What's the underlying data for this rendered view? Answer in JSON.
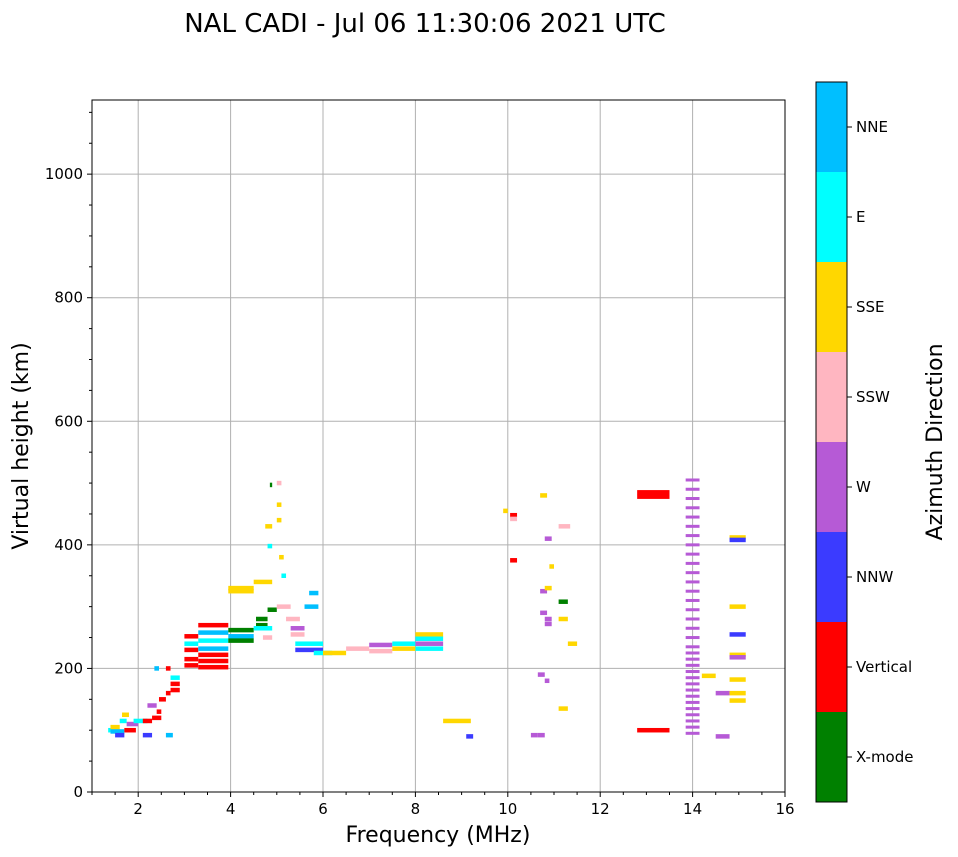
{
  "chart_data": {
    "type": "scatter",
    "title": "NAL CADI - Jul 06 11:30:06 2021 UTC",
    "xlabel": "Frequency (MHz)",
    "ylabel": "Virtual height (km)",
    "xlim": [
      1,
      16
    ],
    "ylim": [
      0,
      1120
    ],
    "xticks": [
      2,
      4,
      6,
      8,
      10,
      12,
      14,
      16
    ],
    "yticks": [
      0,
      200,
      400,
      600,
      800,
      1000
    ],
    "grid": true,
    "colorbar": {
      "title": "Azimuth Direction",
      "categories": [
        {
          "name": "X-mode",
          "color": "#008000"
        },
        {
          "name": "Vertical",
          "color": "#ff0000"
        },
        {
          "name": "NNW",
          "color": "#3b3bff"
        },
        {
          "name": "W",
          "color": "#b65ad6"
        },
        {
          "name": "SSW",
          "color": "#ffb6c1"
        },
        {
          "name": "SSE",
          "color": "#ffd700"
        },
        {
          "name": "E",
          "color": "#00ffff"
        },
        {
          "name": "NNE",
          "color": "#00bfff"
        }
      ]
    },
    "segments": [
      {
        "f1": 1.35,
        "f2": 1.4,
        "h": 100,
        "c": "E"
      },
      {
        "f1": 1.4,
        "f2": 1.6,
        "h": 105,
        "c": "SSE"
      },
      {
        "f1": 1.4,
        "f2": 1.7,
        "h": 98,
        "c": "NNE"
      },
      {
        "f1": 1.5,
        "f2": 1.7,
        "h": 92,
        "c": "NNW"
      },
      {
        "f1": 1.6,
        "f2": 1.75,
        "h": 115,
        "c": "E"
      },
      {
        "f1": 1.65,
        "f2": 1.8,
        "h": 125,
        "c": "SSE"
      },
      {
        "f1": 1.7,
        "f2": 1.95,
        "h": 100,
        "c": "Vertical"
      },
      {
        "f1": 1.75,
        "f2": 2.0,
        "h": 110,
        "c": "W"
      },
      {
        "f1": 1.9,
        "f2": 2.2,
        "h": 115,
        "c": "E"
      },
      {
        "f1": 2.1,
        "f2": 2.3,
        "h": 92,
        "c": "NNW"
      },
      {
        "f1": 2.1,
        "f2": 2.3,
        "h": 115,
        "c": "Vertical"
      },
      {
        "f1": 2.2,
        "f2": 2.4,
        "h": 140,
        "c": "W"
      },
      {
        "f1": 2.3,
        "f2": 2.5,
        "h": 120,
        "c": "Vertical"
      },
      {
        "f1": 2.4,
        "f2": 2.5,
        "h": 130,
        "c": "Vertical"
      },
      {
        "f1": 2.35,
        "f2": 2.45,
        "h": 200,
        "c": "NNE"
      },
      {
        "f1": 2.45,
        "f2": 2.6,
        "h": 150,
        "c": "Vertical"
      },
      {
        "f1": 2.6,
        "f2": 2.7,
        "h": 160,
        "c": "Vertical"
      },
      {
        "f1": 2.6,
        "f2": 2.7,
        "h": 200,
        "c": "Vertical"
      },
      {
        "f1": 2.6,
        "f2": 2.75,
        "h": 92,
        "c": "NNE"
      },
      {
        "f1": 2.7,
        "f2": 2.9,
        "h": 175,
        "c": "Vertical"
      },
      {
        "f1": 2.7,
        "f2": 2.9,
        "h": 185,
        "c": "E"
      },
      {
        "f1": 2.7,
        "f2": 2.9,
        "h": 165,
        "c": "Vertical"
      },
      {
        "f1": 3.0,
        "f2": 3.3,
        "h": 252,
        "c": "Vertical"
      },
      {
        "f1": 3.0,
        "f2": 3.3,
        "h": 240,
        "c": "E"
      },
      {
        "f1": 3.0,
        "f2": 3.3,
        "h": 230,
        "c": "Vertical"
      },
      {
        "f1": 3.0,
        "f2": 3.3,
        "h": 215,
        "c": "Vertical"
      },
      {
        "f1": 3.0,
        "f2": 3.3,
        "h": 205,
        "c": "Vertical"
      },
      {
        "f1": 3.3,
        "f2": 3.95,
        "h": 270,
        "c": "Vertical"
      },
      {
        "f1": 3.3,
        "f2": 3.95,
        "h": 258,
        "c": "NNE"
      },
      {
        "f1": 3.3,
        "f2": 3.95,
        "h": 245,
        "c": "E"
      },
      {
        "f1": 3.3,
        "f2": 3.95,
        "h": 232,
        "c": "NNE"
      },
      {
        "f1": 3.3,
        "f2": 3.95,
        "h": 222,
        "c": "Vertical"
      },
      {
        "f1": 3.3,
        "f2": 3.95,
        "h": 212,
        "c": "Vertical"
      },
      {
        "f1": 3.3,
        "f2": 3.95,
        "h": 202,
        "c": "Vertical"
      },
      {
        "f1": 3.95,
        "f2": 4.5,
        "h": 262,
        "c": "X-mode"
      },
      {
        "f1": 3.95,
        "f2": 4.5,
        "h": 252,
        "c": "NNE"
      },
      {
        "f1": 3.95,
        "f2": 4.5,
        "h": 245,
        "c": "X-mode"
      },
      {
        "f1": 3.95,
        "f2": 4.5,
        "h": 330,
        "c": "SSE"
      },
      {
        "f1": 3.95,
        "f2": 4.5,
        "h": 325,
        "c": "SSE"
      },
      {
        "f1": 4.5,
        "f2": 4.9,
        "h": 340,
        "c": "SSE"
      },
      {
        "f1": 4.55,
        "f2": 4.8,
        "h": 280,
        "c": "X-mode"
      },
      {
        "f1": 4.55,
        "f2": 4.8,
        "h": 270,
        "c": "X-mode"
      },
      {
        "f1": 4.5,
        "f2": 4.9,
        "h": 265,
        "c": "E"
      },
      {
        "f1": 4.7,
        "f2": 4.9,
        "h": 250,
        "c": "SSW"
      },
      {
        "f1": 4.8,
        "f2": 5.0,
        "h": 295,
        "c": "X-mode"
      },
      {
        "f1": 4.8,
        "f2": 4.9,
        "h": 398,
        "c": "E"
      },
      {
        "f1": 4.75,
        "f2": 4.9,
        "h": 430,
        "c": "SSE"
      },
      {
        "f1": 4.85,
        "f2": 4.9,
        "h": 497,
        "c": "X-mode"
      },
      {
        "f1": 5.0,
        "f2": 5.1,
        "h": 500,
        "c": "SSW"
      },
      {
        "f1": 5.0,
        "f2": 5.1,
        "h": 465,
        "c": "SSE"
      },
      {
        "f1": 5.0,
        "f2": 5.1,
        "h": 440,
        "c": "SSE"
      },
      {
        "f1": 5.05,
        "f2": 5.15,
        "h": 380,
        "c": "SSE"
      },
      {
        "f1": 5.1,
        "f2": 5.2,
        "h": 350,
        "c": "E"
      },
      {
        "f1": 5.0,
        "f2": 5.3,
        "h": 300,
        "c": "SSW"
      },
      {
        "f1": 5.2,
        "f2": 5.5,
        "h": 280,
        "c": "SSW"
      },
      {
        "f1": 5.3,
        "f2": 5.6,
        "h": 265,
        "c": "W"
      },
      {
        "f1": 5.3,
        "f2": 5.6,
        "h": 255,
        "c": "SSW"
      },
      {
        "f1": 5.6,
        "f2": 5.9,
        "h": 300,
        "c": "NNE"
      },
      {
        "f1": 5.7,
        "f2": 5.9,
        "h": 322,
        "c": "NNE"
      },
      {
        "f1": 5.4,
        "f2": 6.0,
        "h": 240,
        "c": "E"
      },
      {
        "f1": 5.4,
        "f2": 6.0,
        "h": 230,
        "c": "NNW"
      },
      {
        "f1": 5.8,
        "f2": 6.2,
        "h": 225,
        "c": "E"
      },
      {
        "f1": 6.0,
        "f2": 6.5,
        "h": 225,
        "c": "SSE"
      },
      {
        "f1": 6.5,
        "f2": 7.0,
        "h": 232,
        "c": "SSW"
      },
      {
        "f1": 7.0,
        "f2": 7.5,
        "h": 238,
        "c": "W"
      },
      {
        "f1": 7.0,
        "f2": 7.5,
        "h": 228,
        "c": "SSW"
      },
      {
        "f1": 7.5,
        "f2": 8.0,
        "h": 240,
        "c": "E"
      },
      {
        "f1": 7.5,
        "f2": 8.0,
        "h": 232,
        "c": "SSE"
      },
      {
        "f1": 8.0,
        "f2": 8.6,
        "h": 255,
        "c": "SSE"
      },
      {
        "f1": 8.0,
        "f2": 8.6,
        "h": 248,
        "c": "E"
      },
      {
        "f1": 8.0,
        "f2": 8.6,
        "h": 240,
        "c": "W"
      },
      {
        "f1": 8.0,
        "f2": 8.6,
        "h": 232,
        "c": "E"
      },
      {
        "f1": 8.6,
        "f2": 9.2,
        "h": 115,
        "c": "SSE"
      },
      {
        "f1": 9.1,
        "f2": 9.25,
        "h": 90,
        "c": "NNW"
      },
      {
        "f1": 9.9,
        "f2": 10.0,
        "h": 455,
        "c": "SSE"
      },
      {
        "f1": 10.05,
        "f2": 10.2,
        "h": 448,
        "c": "Vertical"
      },
      {
        "f1": 10.05,
        "f2": 10.2,
        "h": 442,
        "c": "SSW"
      },
      {
        "f1": 10.05,
        "f2": 10.2,
        "h": 375,
        "c": "Vertical"
      },
      {
        "f1": 10.5,
        "f2": 10.65,
        "h": 92,
        "c": "W"
      },
      {
        "f1": 10.65,
        "f2": 10.8,
        "h": 92,
        "c": "W"
      },
      {
        "f1": 10.65,
        "f2": 10.8,
        "h": 190,
        "c": "W"
      },
      {
        "f1": 10.8,
        "f2": 10.9,
        "h": 180,
        "c": "W"
      },
      {
        "f1": 10.7,
        "f2": 10.85,
        "h": 480,
        "c": "SSE"
      },
      {
        "f1": 10.8,
        "f2": 10.95,
        "h": 410,
        "c": "W"
      },
      {
        "f1": 10.9,
        "f2": 11.0,
        "h": 365,
        "c": "SSE"
      },
      {
        "f1": 10.7,
        "f2": 10.85,
        "h": 325,
        "c": "W"
      },
      {
        "f1": 10.8,
        "f2": 10.95,
        "h": 330,
        "c": "SSE"
      },
      {
        "f1": 10.7,
        "f2": 10.85,
        "h": 290,
        "c": "W"
      },
      {
        "f1": 10.8,
        "f2": 10.95,
        "h": 280,
        "c": "W"
      },
      {
        "f1": 10.8,
        "f2": 10.95,
        "h": 272,
        "c": "W"
      },
      {
        "f1": 11.1,
        "f2": 11.35,
        "h": 430,
        "c": "SSW"
      },
      {
        "f1": 11.1,
        "f2": 11.3,
        "h": 308,
        "c": "X-mode"
      },
      {
        "f1": 11.1,
        "f2": 11.3,
        "h": 280,
        "c": "SSE"
      },
      {
        "f1": 11.1,
        "f2": 11.3,
        "h": 135,
        "c": "SSE"
      },
      {
        "f1": 11.3,
        "f2": 11.5,
        "h": 240,
        "c": "SSE"
      },
      {
        "f1": 12.8,
        "f2": 13.5,
        "h": 485,
        "c": "Vertical"
      },
      {
        "f1": 12.8,
        "f2": 13.5,
        "h": 478,
        "c": "Vertical"
      },
      {
        "f1": 12.8,
        "f2": 13.5,
        "h": 100,
        "c": "Vertical"
      },
      {
        "f1": 14.2,
        "f2": 14.5,
        "h": 188,
        "c": "SSE"
      },
      {
        "f1": 14.5,
        "f2": 14.8,
        "h": 90,
        "c": "W"
      },
      {
        "f1": 14.5,
        "f2": 14.8,
        "h": 160,
        "c": "W"
      },
      {
        "f1": 14.8,
        "f2": 15.15,
        "h": 412,
        "c": "SSE"
      },
      {
        "f1": 14.8,
        "f2": 15.15,
        "h": 408,
        "c": "NNW"
      },
      {
        "f1": 14.8,
        "f2": 15.15,
        "h": 300,
        "c": "SSE"
      },
      {
        "f1": 14.8,
        "f2": 15.15,
        "h": 255,
        "c": "NNW"
      },
      {
        "f1": 14.8,
        "f2": 15.15,
        "h": 222,
        "c": "SSE"
      },
      {
        "f1": 14.8,
        "f2": 15.15,
        "h": 218,
        "c": "W"
      },
      {
        "f1": 14.8,
        "f2": 15.15,
        "h": 182,
        "c": "SSE"
      },
      {
        "f1": 14.8,
        "f2": 15.15,
        "h": 160,
        "c": "SSE"
      },
      {
        "f1": 14.8,
        "f2": 15.15,
        "h": 148,
        "c": "SSE"
      }
    ],
    "ladders": [
      {
        "f1": 13.85,
        "f2": 14.15,
        "heights": [
          95,
          105,
          115,
          125,
          135,
          145,
          155,
          165,
          175,
          185,
          195,
          205,
          215,
          225,
          235,
          250,
          265,
          280,
          295,
          310,
          325,
          340,
          355,
          370,
          385,
          400,
          415,
          430,
          445,
          460,
          475,
          490,
          505
        ],
        "c": "W"
      }
    ]
  }
}
